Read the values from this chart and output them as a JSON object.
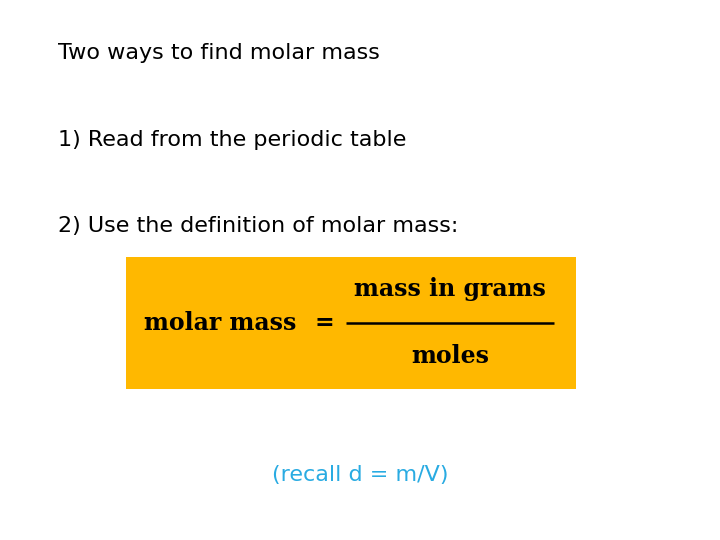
{
  "background_color": "#ffffff",
  "title_text": "Two ways to find molar mass",
  "line1_text": "1) Read from the periodic table",
  "line2_text": "2) Use the definition of molar mass:",
  "box_color": "#FFB800",
  "formula_left": "molar mass = ",
  "formula_numerator": "mass in grams",
  "formula_denominator": "moles",
  "recall_text": "(recall d = m/V)",
  "recall_color": "#29ABE2",
  "text_color": "#000000",
  "title_fontsize": 16,
  "body_fontsize": 16,
  "formula_fontsize": 17,
  "recall_fontsize": 16
}
